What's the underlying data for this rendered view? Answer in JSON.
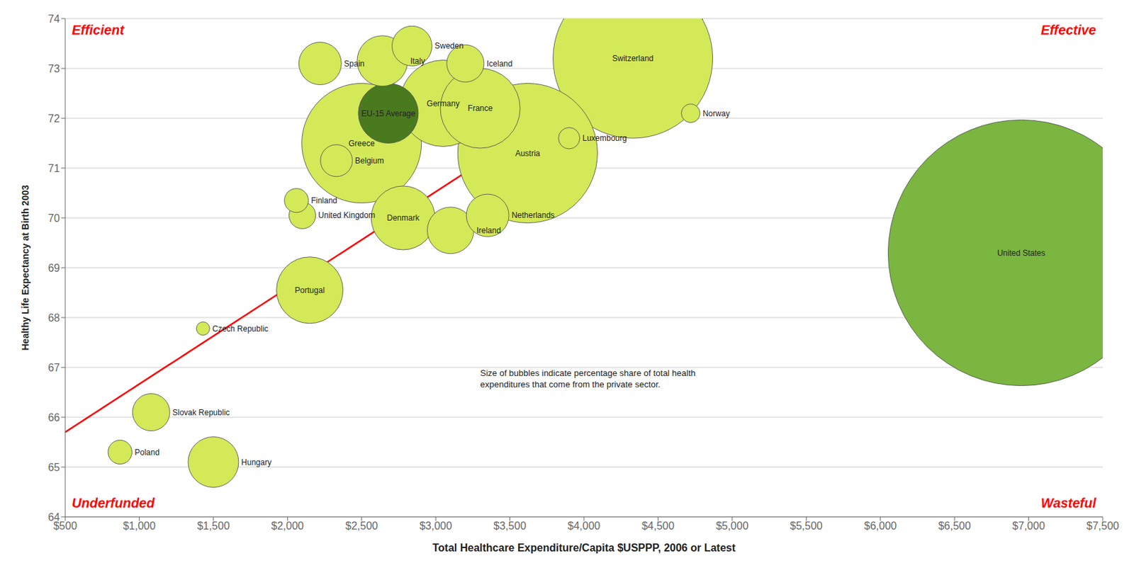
{
  "chart_data": {
    "type": "scatter",
    "xlabel": "Total Healthcare Expenditure/Capita $USPPP, 2006 or Latest",
    "ylabel": "Healthy Life Expectancy at Birth 2003",
    "xlim": [
      500,
      7500
    ],
    "ylim": [
      64,
      74
    ],
    "xticks": [
      {
        "value": 500,
        "label": "$500"
      },
      {
        "value": 1000,
        "label": "$1,000"
      },
      {
        "value": 1500,
        "label": "$1,500"
      },
      {
        "value": 2000,
        "label": "$2,000"
      },
      {
        "value": 2500,
        "label": "$2,500"
      },
      {
        "value": 3000,
        "label": "$3,000"
      },
      {
        "value": 3500,
        "label": "$3,500"
      },
      {
        "value": 4000,
        "label": "$4,000"
      },
      {
        "value": 4500,
        "label": "$4,500"
      },
      {
        "value": 5000,
        "label": "$5,000"
      },
      {
        "value": 5500,
        "label": "$5,500"
      },
      {
        "value": 6000,
        "label": "$6,000"
      },
      {
        "value": 6500,
        "label": "$6,500"
      },
      {
        "value": 7000,
        "label": "$7,000"
      },
      {
        "value": 7500,
        "label": "$7,500"
      }
    ],
    "yticks": [
      64,
      65,
      66,
      67,
      68,
      69,
      70,
      71,
      72,
      73,
      74
    ],
    "grid": "y",
    "point_labels": [
      "United States",
      "Switzerland",
      "Austria",
      "Greece",
      "Germany",
      "France",
      "Portugal",
      "Denmark",
      "EU-15 Average",
      "Hungary",
      "Italy",
      "Ireland",
      "Netherlands",
      "Spain",
      "Sweden",
      "Slovak Republic",
      "Iceland",
      "Belgium",
      "United Kingdom",
      "Poland",
      "Finland",
      "Luxembourg",
      "Norway",
      "Czech Republic"
    ],
    "x": [
      6950,
      4330,
      3620,
      2500,
      3050,
      3300,
      2150,
      2780,
      2680,
      1500,
      2640,
      3100,
      3350,
      2220,
      2840,
      1080,
      3200,
      2330,
      2100,
      870,
      2060,
      3900,
      4720,
      1430
    ],
    "values": [
      69.3,
      73.2,
      71.3,
      71.5,
      72.3,
      72.2,
      68.55,
      70.0,
      72.1,
      65.1,
      73.15,
      69.75,
      70.05,
      73.1,
      73.45,
      66.1,
      73.1,
      71.15,
      70.05,
      65.3,
      70.35,
      71.6,
      72.1,
      67.78
    ],
    "sizes": [
      200,
      120,
      105,
      90,
      65,
      60,
      50,
      48,
      45,
      38,
      38,
      35,
      32,
      32,
      30,
      28,
      28,
      24,
      20,
      18,
      18,
      16,
      14,
      10
    ],
    "colors": [
      "#7ab640",
      "#d4e957",
      "#d4e957",
      "#d4e957",
      "#d4e957",
      "#d4e957",
      "#d4e957",
      "#d4e957",
      "#4a7a1e",
      "#d4e957",
      "#d4e957",
      "#d4e957",
      "#d4e957",
      "#d4e957",
      "#d4e957",
      "#d4e957",
      "#d4e957",
      "#d4e957",
      "#d4e957",
      "#d4e957",
      "#d4e957",
      "#d4e957",
      "#d4e957",
      "#d4e957"
    ],
    "trendline": {
      "x": [
        500,
        4800
      ],
      "values": [
        65.7,
        74.0
      ],
      "color": "red"
    },
    "corner_labels": [
      {
        "text": "Efficient",
        "color": "red"
      },
      {
        "text": "Effective",
        "color": "red"
      },
      {
        "text": "Underfunded",
        "color": "red"
      },
      {
        "text": "Wasteful",
        "color": "red"
      }
    ],
    "annotation": "Size of bubbles indicate percentage share of total health\nexpenditures that come from the private sector."
  }
}
